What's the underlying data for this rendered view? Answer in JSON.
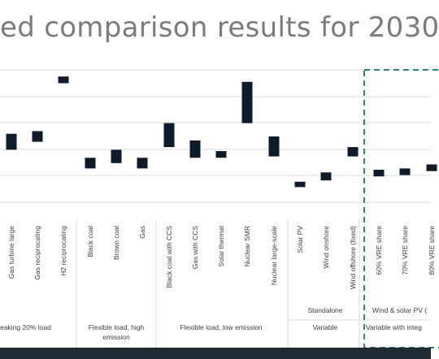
{
  "title": "ed comparison results for 2030",
  "colors": {
    "bar": "#0e1b2b",
    "grid": "#d9d9d9",
    "highlight": "#3a7a93",
    "band": "#1f2a33"
  },
  "chart_data": {
    "type": "bar",
    "subtype": "floating-range",
    "grid": true,
    "categories": [
      "Gas turbine large",
      "Gas reciprocating",
      "H2 reciprocating",
      "Black coal",
      "Brown coal",
      "Gas",
      "Black coal with CCS",
      "Gas with CCS",
      "Solar thermal",
      "Nuclear SMR",
      "Nuclear large-scale",
      "Solar PV",
      "Wind onshore",
      "Wind offshore (fixed)",
      "60% VRE share",
      "70% VRE share",
      "80% VRE share"
    ],
    "ranges": [
      [
        2.45,
        3.05
      ],
      [
        2.75,
        3.15
      ],
      [
        4.95,
        5.2
      ],
      [
        1.75,
        2.15
      ],
      [
        1.95,
        2.45
      ],
      [
        1.75,
        2.15
      ],
      [
        2.55,
        3.45
      ],
      [
        2.15,
        2.8
      ],
      [
        2.15,
        2.4
      ],
      [
        3.45,
        5.0
      ],
      [
        2.2,
        2.95
      ],
      [
        1.05,
        1.25
      ],
      [
        1.3,
        1.6
      ],
      [
        2.2,
        2.55
      ],
      [
        1.45,
        1.7
      ],
      [
        1.5,
        1.75
      ],
      [
        1.65,
        1.9
      ]
    ],
    "groups": [
      {
        "label": "eaking 20% load",
        "superlabel": ""
      },
      {
        "label": "Flexible load, high emission",
        "superlabel": ""
      },
      {
        "label": "Flexible load, low emission",
        "superlabel": ""
      },
      {
        "label": "Variable",
        "superlabel": "Standalone"
      },
      {
        "label": "Variable with integ",
        "superlabel": "Wind & solar PV ("
      }
    ]
  }
}
